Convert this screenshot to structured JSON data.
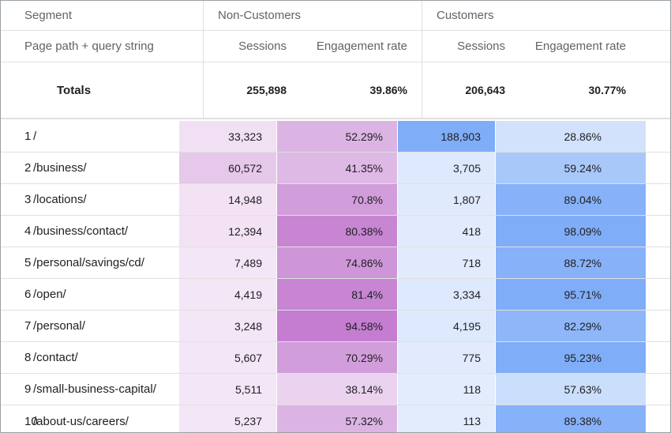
{
  "header": {
    "segment_label": "Segment",
    "non_customers_label": "Non-Customers",
    "customers_label": "Customers",
    "dimension_label": "Page path + query string",
    "sessions_label": "Sessions",
    "engagement_label": "Engagement rate"
  },
  "totals": {
    "label": "Totals",
    "nc_sessions": "255,898",
    "nc_engagement": "39.86%",
    "c_sessions": "206,643",
    "c_engagement": "30.77%"
  },
  "colors": {
    "border": "#9aa0a6",
    "grid": "#e0e0e0",
    "purple_base": "#9c27b0",
    "blue_base": "#4285f4"
  },
  "rows": [
    {
      "index": "1",
      "path": "/",
      "nc_sessions": "33,323",
      "nc_engagement": "52.29%",
      "c_sessions": "188,903",
      "c_engagement": "28.86%",
      "nc_s_level": 0.12,
      "nc_e_level": 0.4,
      "c_s_level": 0.85,
      "c_e_level": 0.25
    },
    {
      "index": "2",
      "path": "/business/",
      "nc_sessions": "60,572",
      "nc_engagement": "41.35%",
      "c_sessions": "3,705",
      "c_engagement": "59.24%",
      "nc_s_level": 0.27,
      "nc_e_level": 0.37,
      "c_s_level": 0.17,
      "c_e_level": 0.55
    },
    {
      "index": "3",
      "path": "/locations/",
      "nc_sessions": "14,948",
      "nc_engagement": "70.8%",
      "c_sessions": "1,807",
      "c_engagement": "89.04%",
      "nc_s_level": 0.1,
      "nc_e_level": 0.55,
      "c_s_level": 0.15,
      "c_e_level": 0.8
    },
    {
      "index": "4",
      "path": "/business/contact/",
      "nc_sessions": "12,394",
      "nc_engagement": "80.38%",
      "c_sessions": "418",
      "c_engagement": "98.09%",
      "nc_s_level": 0.1,
      "nc_e_level": 0.7,
      "c_s_level": 0.14,
      "c_e_level": 0.85
    },
    {
      "index": "5",
      "path": "/personal/savings/cd/",
      "nc_sessions": "7,489",
      "nc_engagement": "74.86%",
      "c_sessions": "718",
      "c_engagement": "88.72%",
      "nc_s_level": 0.08,
      "nc_e_level": 0.6,
      "c_s_level": 0.14,
      "c_e_level": 0.8
    },
    {
      "index": "6",
      "path": "/open/",
      "nc_sessions": "4,419",
      "nc_engagement": "81.4%",
      "c_sessions": "3,334",
      "c_engagement": "95.71%",
      "nc_s_level": 0.08,
      "nc_e_level": 0.7,
      "c_s_level": 0.16,
      "c_e_level": 0.85
    },
    {
      "index": "7",
      "path": "/personal/",
      "nc_sessions": "3,248",
      "nc_engagement": "94.58%",
      "c_sessions": "4,195",
      "c_engagement": "82.29%",
      "nc_s_level": 0.08,
      "nc_e_level": 0.75,
      "c_s_level": 0.17,
      "c_e_level": 0.75
    },
    {
      "index": "8",
      "path": "/contact/",
      "nc_sessions": "5,607",
      "nc_engagement": "70.29%",
      "c_sessions": "775",
      "c_engagement": "95.23%",
      "nc_s_level": 0.08,
      "nc_e_level": 0.55,
      "c_s_level": 0.14,
      "c_e_level": 0.85
    },
    {
      "index": "9",
      "path": "/small-business-capital/",
      "nc_sessions": "5,511",
      "nc_engagement": "38.14%",
      "c_sessions": "118",
      "c_engagement": "57.63%",
      "nc_s_level": 0.08,
      "nc_e_level": 0.2,
      "c_s_level": 0.13,
      "c_e_level": 0.3
    },
    {
      "index": "10",
      "path": "/about-us/careers/",
      "nc_sessions": "5,237",
      "nc_engagement": "57.32%",
      "c_sessions": "113",
      "c_engagement": "89.38%",
      "nc_s_level": 0.08,
      "nc_e_level": 0.4,
      "c_s_level": 0.13,
      "c_e_level": 0.8
    }
  ]
}
